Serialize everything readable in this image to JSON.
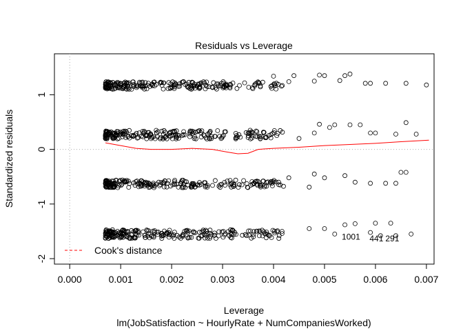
{
  "chart_data": {
    "type": "scatter",
    "title": "Residuals vs Leverage",
    "xlabel": "Leverage",
    "ylabel": "Standardized residuals",
    "subtitle": "lm(JobSatisfaction ~ HourlyRate + NumCompaniesWorked)",
    "xlim": [
      -0.0003,
      0.00715
    ],
    "ylim": [
      -2.1,
      1.75
    ],
    "xticks": [
      0.0,
      0.001,
      0.002,
      0.003,
      0.004,
      0.005,
      0.006,
      0.007
    ],
    "xtick_labels": [
      "0.000",
      "0.001",
      "0.002",
      "0.003",
      "0.004",
      "0.005",
      "0.006",
      "0.007"
    ],
    "yticks": [
      -2,
      -1,
      0,
      1
    ],
    "ytick_labels": [
      "-2",
      "-1",
      "0",
      "1"
    ],
    "grid": false,
    "reference_lines": {
      "h": 0,
      "v": 0,
      "style": "dotted",
      "color": "#aaaaaa"
    },
    "legend": {
      "position": "bottom-left",
      "entries": [
        {
          "label": "Cook's distance",
          "color": "#ff0000",
          "style": "dashed"
        }
      ]
    },
    "bands": [
      {
        "y": 1.17,
        "spread": 0.07,
        "n": 230
      },
      {
        "y": 0.27,
        "spread": 0.08,
        "n": 230
      },
      {
        "y": -0.63,
        "spread": 0.07,
        "n": 230
      },
      {
        "y": -1.55,
        "spread": 0.08,
        "n": 240
      }
    ],
    "points": [
      {
        "x": 0.007,
        "y": 1.18
      },
      {
        "x": 0.0066,
        "y": 1.21
      },
      {
        "x": 0.0062,
        "y": 1.21
      },
      {
        "x": 0.0059,
        "y": 1.21
      },
      {
        "x": 0.0058,
        "y": 1.21
      },
      {
        "x": 0.0055,
        "y": 1.38
      },
      {
        "x": 0.0054,
        "y": 1.35
      },
      {
        "x": 0.0053,
        "y": 1.26
      },
      {
        "x": 0.005,
        "y": 1.35
      },
      {
        "x": 0.0049,
        "y": 1.36
      },
      {
        "x": 0.0048,
        "y": 1.25
      },
      {
        "x": 0.0044,
        "y": 1.35
      },
      {
        "x": 0.0043,
        "y": 1.24
      },
      {
        "x": 0.004,
        "y": 1.34
      },
      {
        "x": 0.0068,
        "y": 0.28
      },
      {
        "x": 0.0066,
        "y": 0.49
      },
      {
        "x": 0.0064,
        "y": 0.28
      },
      {
        "x": 0.006,
        "y": 0.3
      },
      {
        "x": 0.0059,
        "y": 0.3
      },
      {
        "x": 0.0057,
        "y": 0.45
      },
      {
        "x": 0.0055,
        "y": 0.45
      },
      {
        "x": 0.0052,
        "y": 0.45
      },
      {
        "x": 0.0051,
        "y": 0.4
      },
      {
        "x": 0.0049,
        "y": 0.46
      },
      {
        "x": 0.0048,
        "y": 0.3
      },
      {
        "x": 0.0045,
        "y": 0.2
      },
      {
        "x": 0.0066,
        "y": -0.42
      },
      {
        "x": 0.0065,
        "y": -0.42
      },
      {
        "x": 0.0064,
        "y": -0.62
      },
      {
        "x": 0.0062,
        "y": -0.62
      },
      {
        "x": 0.0059,
        "y": -0.62
      },
      {
        "x": 0.0056,
        "y": -0.6
      },
      {
        "x": 0.0054,
        "y": -0.48
      },
      {
        "x": 0.005,
        "y": -0.52
      },
      {
        "x": 0.0048,
        "y": -0.45
      },
      {
        "x": 0.0047,
        "y": -0.69
      },
      {
        "x": 0.0043,
        "y": -0.52
      },
      {
        "x": 0.0041,
        "y": -0.6
      },
      {
        "x": 0.0063,
        "y": -1.35
      },
      {
        "x": 0.006,
        "y": -1.35
      },
      {
        "x": 0.0056,
        "y": -1.36
      },
      {
        "x": 0.0054,
        "y": -1.38
      },
      {
        "x": 0.005,
        "y": -1.45
      },
      {
        "x": 0.0047,
        "y": -1.45
      },
      {
        "x": 0.0052,
        "y": -1.55
      },
      {
        "x": 0.0059,
        "y": -1.52
      },
      {
        "x": 0.0061,
        "y": -1.58
      },
      {
        "x": 0.0064,
        "y": -1.58
      },
      {
        "x": 0.0067,
        "y": -1.55
      }
    ],
    "cook_distance_line": {
      "x": [
        0.0007,
        0.001,
        0.0013,
        0.0016,
        0.002,
        0.0024,
        0.0028,
        0.0031,
        0.0033,
        0.0035,
        0.0037,
        0.004,
        0.0045,
        0.005,
        0.0055,
        0.006,
        0.0065,
        0.00705
      ],
      "y": [
        0.12,
        0.07,
        0.02,
        0.0,
        0.0,
        0.02,
        0.0,
        -0.05,
        -0.08,
        -0.07,
        0.0,
        0.02,
        0.04,
        0.07,
        0.09,
        0.11,
        0.14,
        0.17
      ]
    },
    "point_labels": [
      {
        "text": "1001",
        "x": 0.00552,
        "y": -1.55
      },
      {
        "text": "441",
        "x": 0.00602,
        "y": -1.58
      },
      {
        "text": "291",
        "x": 0.00633,
        "y": -1.58
      }
    ]
  }
}
